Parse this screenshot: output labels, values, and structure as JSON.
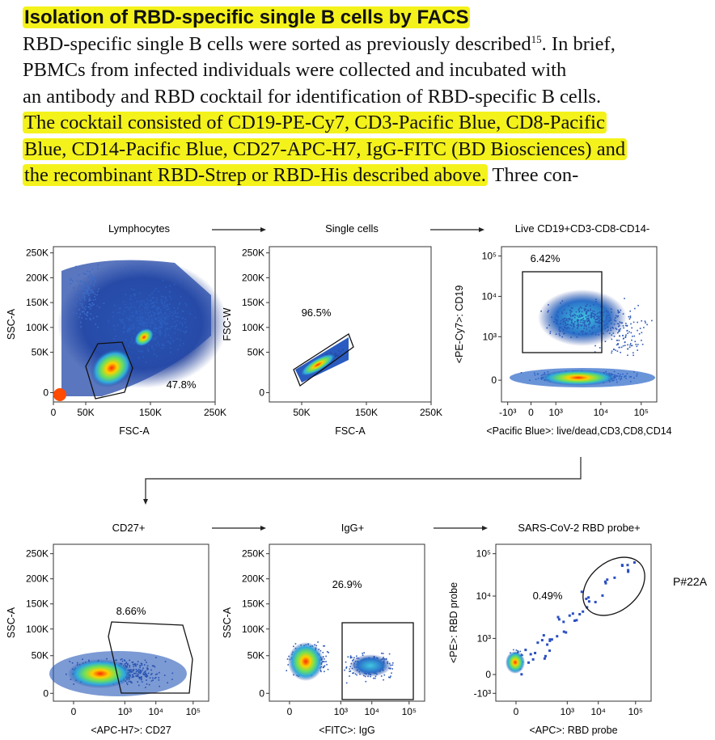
{
  "text": {
    "heading": "Isolation of RBD-specific single B cells by FACS",
    "line1_pre": "RBD-specific single B cells were sorted as previously described",
    "line1_ref": "15",
    "line1_post": ". In brief,",
    "line2": "PBMCs from infected individuals were collected and incubated with",
    "line3": "an antibody and RBD cocktail for identification of RBD-specific B cells.",
    "line4": "The cocktail consisted of CD19-PE-Cy7, CD3-Pacific Blue, CD8-Pacific",
    "line5": "Blue, CD14-Pacific Blue, CD27-APC-H7, IgG-FITC (BD Biosciences) and",
    "line6_hl": "the recombinant RBD-Strep or RBD-His described above.",
    "line6_tail": " Three con-"
  },
  "figure": {
    "sample_label": "P#22A",
    "panels": [
      {
        "title": "Lymphocytes",
        "gate_pct": "47.8%",
        "xlabel": "FSC-A",
        "ylabel": "SSC-A",
        "xticks": [
          "0",
          "50K",
          "150K",
          "250K"
        ],
        "yticks": [
          "250K",
          "200K",
          "150K",
          "100K",
          "50K",
          "0"
        ]
      },
      {
        "title": "Single cells",
        "gate_pct": "96.5%",
        "xlabel": "FSC-A",
        "ylabel": "FSC-W",
        "xticks": [
          "50K",
          "150K",
          "250K"
        ],
        "yticks": [
          "250K",
          "200K",
          "150K",
          "100K",
          "50K",
          "0"
        ]
      },
      {
        "title": "Live CD19+CD3-CD8-CD14-",
        "gate_pct": "6.42%",
        "xlabel": "<Pacific Blue>: live/dead,CD3,CD8,CD14",
        "ylabel": "<PE-Cy7>: CD19",
        "xticks": [
          "-10³",
          "0",
          "10³",
          "10⁴",
          "10⁵"
        ],
        "yticks": [
          "10⁵",
          "10⁴",
          "10³",
          "0"
        ]
      },
      {
        "title": "CD27+",
        "gate_pct": "8.66%",
        "xlabel": "<APC-H7>: CD27",
        "ylabel": "SSC-A",
        "xticks": [
          "0",
          "10³",
          "10⁴",
          "10⁵"
        ],
        "yticks": [
          "250K",
          "200K",
          "150K",
          "100K",
          "50K",
          "0"
        ]
      },
      {
        "title": "IgG+",
        "gate_pct": "26.9%",
        "xlabel": "<FITC>: IgG",
        "ylabel": "SSC-A",
        "xticks": [
          "0",
          "10³",
          "10⁴",
          "10⁵"
        ],
        "yticks": [
          "250K",
          "200K",
          "150K",
          "100K",
          "50K",
          "0"
        ]
      },
      {
        "title": "SARS-CoV-2 RBD probe+",
        "gate_pct": "0.49%",
        "xlabel": "<APC>: RBD probe",
        "ylabel": "<PE>: RBD probe",
        "xticks": [
          "0",
          "10³",
          "10⁴",
          "10⁵"
        ],
        "yticks": [
          "10⁵",
          "10⁴",
          "10³",
          "0",
          "-10³"
        ]
      }
    ]
  }
}
